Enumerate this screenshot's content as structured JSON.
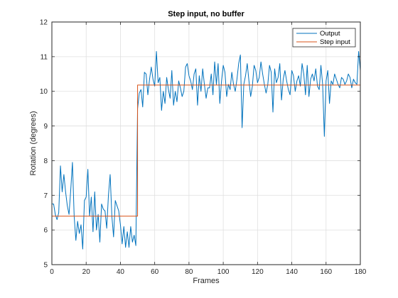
{
  "chart_data": {
    "type": "line",
    "title": "Step input, no buffer",
    "xlabel": "Frames",
    "ylabel": "Rotation (degrees)",
    "xlim": [
      0,
      180
    ],
    "ylim": [
      5,
      12
    ],
    "xticks": [
      0,
      20,
      40,
      60,
      80,
      100,
      120,
      140,
      160,
      180
    ],
    "yticks": [
      5,
      6,
      7,
      8,
      9,
      10,
      11,
      12
    ],
    "grid": true,
    "legend_position": "top-right",
    "series": [
      {
        "name": "Output",
        "color": "#0072BD",
        "x": [
          0,
          1,
          2,
          3,
          4,
          5,
          6,
          7,
          8,
          9,
          10,
          11,
          12,
          13,
          14,
          15,
          16,
          17,
          18,
          19,
          20,
          21,
          22,
          23,
          24,
          25,
          26,
          27,
          28,
          29,
          30,
          31,
          32,
          33,
          34,
          35,
          36,
          37,
          38,
          39,
          40,
          41,
          42,
          43,
          44,
          45,
          46,
          47,
          48,
          49,
          50,
          51,
          52,
          53,
          54,
          55,
          56,
          57,
          58,
          59,
          60,
          61,
          62,
          63,
          64,
          65,
          66,
          67,
          68,
          69,
          70,
          71,
          72,
          73,
          74,
          75,
          76,
          77,
          78,
          79,
          80,
          81,
          82,
          83,
          84,
          85,
          86,
          87,
          88,
          89,
          90,
          91,
          92,
          93,
          94,
          95,
          96,
          97,
          98,
          99,
          100,
          101,
          102,
          103,
          104,
          105,
          106,
          107,
          108,
          109,
          110,
          111,
          112,
          113,
          114,
          115,
          116,
          117,
          118,
          119,
          120,
          121,
          122,
          123,
          124,
          125,
          126,
          127,
          128,
          129,
          130,
          131,
          132,
          133,
          134,
          135,
          136,
          137,
          138,
          139,
          140,
          141,
          142,
          143,
          144,
          145,
          146,
          147,
          148,
          149,
          150,
          151,
          152,
          153,
          154,
          155,
          156,
          157,
          158,
          159,
          160,
          161,
          162,
          163,
          164,
          165,
          166,
          167,
          168,
          169,
          170,
          171,
          172,
          173,
          174,
          175,
          176,
          177,
          178,
          179,
          180
        ],
        "y": [
          6.75,
          6.75,
          6.45,
          6.3,
          6.5,
          7.85,
          7.1,
          7.6,
          7.1,
          6.7,
          6.45,
          7.15,
          7.95,
          6.4,
          5.7,
          6.25,
          5.9,
          6.15,
          5.45,
          6.85,
          6.95,
          7.75,
          6.4,
          6.95,
          5.95,
          7.1,
          6.0,
          6.45,
          5.65,
          6.75,
          6.6,
          6.55,
          6.05,
          7.0,
          7.6,
          6.4,
          5.8,
          6.85,
          6.7,
          6.55,
          6.15,
          5.6,
          6.1,
          5.5,
          5.95,
          5.5,
          6.1,
          5.65,
          5.85,
          5.55,
          9.5,
          9.95,
          10.05,
          9.55,
          10.55,
          10.5,
          9.9,
          10.35,
          10.7,
          10.35,
          10.15,
          11.15,
          10.25,
          10.4,
          9.45,
          10.0,
          9.65,
          10.4,
          10.05,
          9.8,
          10.6,
          9.6,
          10.0,
          9.7,
          10.3,
          10.1,
          9.85,
          10.0,
          10.7,
          10.8,
          10.45,
          10.3,
          10.05,
          10.5,
          10.65,
          9.6,
          10.45,
          10.0,
          10.65,
          10.2,
          9.8,
          10.1,
          10.1,
          10.5,
          9.9,
          10.85,
          10.2,
          10.8,
          9.65,
          10.3,
          10.75,
          10.55,
          9.85,
          10.2,
          10.05,
          10.55,
          10.2,
          10.0,
          10.35,
          10.8,
          11.05,
          8.95,
          10.2,
          10.45,
          10.8,
          10.3,
          9.85,
          10.15,
          10.75,
          10.6,
          10.25,
          10.4,
          10.85,
          10.5,
          10.2,
          9.95,
          10.2,
          10.75,
          10.55,
          9.4,
          10.65,
          10.25,
          10.4,
          10.8,
          9.75,
          10.35,
          10.6,
          10.3,
          10.05,
          9.9,
          10.6,
          10.45,
          10.0,
          10.3,
          10.45,
          10.15,
          10.8,
          10.5,
          9.9,
          10.75,
          9.85,
          10.35,
          10.5,
          10.3,
          10.65,
          10.15,
          10.05,
          10.75,
          10.2,
          8.7,
          10.3,
          10.6,
          9.65,
          10.3,
          10.2,
          10.5,
          10.35,
          10.2,
          10.1,
          10.4,
          10.35,
          10.2,
          10.3,
          10.5,
          10.4,
          10.1,
          10.35,
          10.25,
          10.2,
          11.15,
          10.6
        ]
      },
      {
        "name": "Step input",
        "color": "#D95319",
        "x": [
          0,
          50,
          50,
          180
        ],
        "y": [
          6.4,
          6.4,
          10.18,
          10.18
        ]
      }
    ]
  }
}
